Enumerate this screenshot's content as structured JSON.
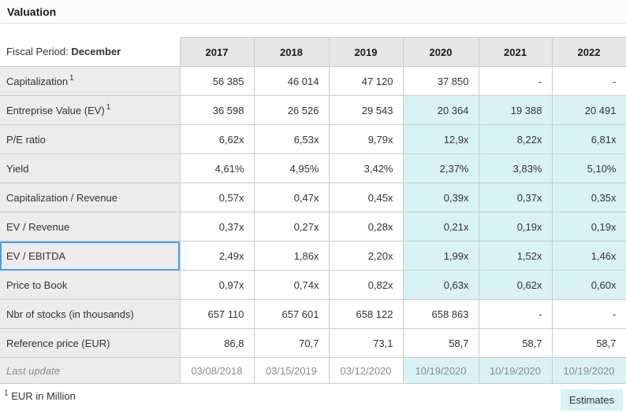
{
  "title": "Valuation",
  "colors": {
    "estimate_bg": "#d9f2f6",
    "header_bg": "#e7e7e7",
    "label_bg": "#ececec",
    "grid": "#cccccc",
    "focus_blue": "#4a9fe8"
  },
  "table": {
    "fiscal_period_label": "Fiscal Period:",
    "fiscal_period_value": "December",
    "years": [
      "2017",
      "2018",
      "2019",
      "2020",
      "2021",
      "2022"
    ],
    "rows": [
      {
        "label": "Capitalization",
        "sup": "1",
        "values": [
          "56 385",
          "46 014",
          "47 120",
          "37 850",
          "-",
          "-"
        ],
        "estimates_from": null,
        "focused": false,
        "muted": false
      },
      {
        "label": "Entreprise Value (EV)",
        "sup": "1",
        "values": [
          "36 598",
          "26 526",
          "29 543",
          "20 364",
          "19 388",
          "20 491"
        ],
        "estimates_from": 3,
        "focused": false,
        "muted": false
      },
      {
        "label": "P/E ratio",
        "sup": null,
        "values": [
          "6,62x",
          "6,53x",
          "9,79x",
          "12,9x",
          "8,22x",
          "6,81x"
        ],
        "estimates_from": 3,
        "focused": false,
        "muted": false
      },
      {
        "label": "Yield",
        "sup": null,
        "values": [
          "4,61%",
          "4,95%",
          "3,42%",
          "2,37%",
          "3,83%",
          "5,10%"
        ],
        "estimates_from": 3,
        "focused": false,
        "muted": false
      },
      {
        "label": "Capitalization / Revenue",
        "sup": null,
        "values": [
          "0,57x",
          "0,47x",
          "0,45x",
          "0,39x",
          "0,37x",
          "0,35x"
        ],
        "estimates_from": 3,
        "focused": false,
        "muted": false
      },
      {
        "label": "EV / Revenue",
        "sup": null,
        "values": [
          "0,37x",
          "0,27x",
          "0,28x",
          "0,21x",
          "0,19x",
          "0,19x"
        ],
        "estimates_from": 3,
        "focused": false,
        "muted": false
      },
      {
        "label": "EV / EBITDA",
        "sup": null,
        "values": [
          "2,49x",
          "1,86x",
          "2,20x",
          "1,99x",
          "1,52x",
          "1,46x"
        ],
        "estimates_from": 3,
        "focused": true,
        "muted": false
      },
      {
        "label": "Price to Book",
        "sup": null,
        "values": [
          "0,97x",
          "0,74x",
          "0,82x",
          "0,63x",
          "0,62x",
          "0,60x"
        ],
        "estimates_from": 3,
        "focused": false,
        "muted": false
      },
      {
        "label": "Nbr of stocks (in thousands)",
        "sup": null,
        "values": [
          "657 110",
          "657 601",
          "658 122",
          "658 863",
          "-",
          "-"
        ],
        "estimates_from": null,
        "focused": false,
        "muted": false
      },
      {
        "label": "Reference price (EUR)",
        "sup": null,
        "values": [
          "86,8",
          "70,7",
          "73,1",
          "58,7",
          "58,7",
          "58,7"
        ],
        "estimates_from": null,
        "focused": false,
        "muted": false
      },
      {
        "label": "Last update",
        "sup": null,
        "values": [
          "03/08/2018",
          "03/15/2019",
          "03/12/2020",
          "10/19/2020",
          "10/19/2020",
          "10/19/2020"
        ],
        "estimates_from": 3,
        "focused": false,
        "muted": true
      }
    ]
  },
  "footnote": {
    "sup": "1",
    "text": "EUR in Million"
  },
  "estimates_badge": "Estimates"
}
